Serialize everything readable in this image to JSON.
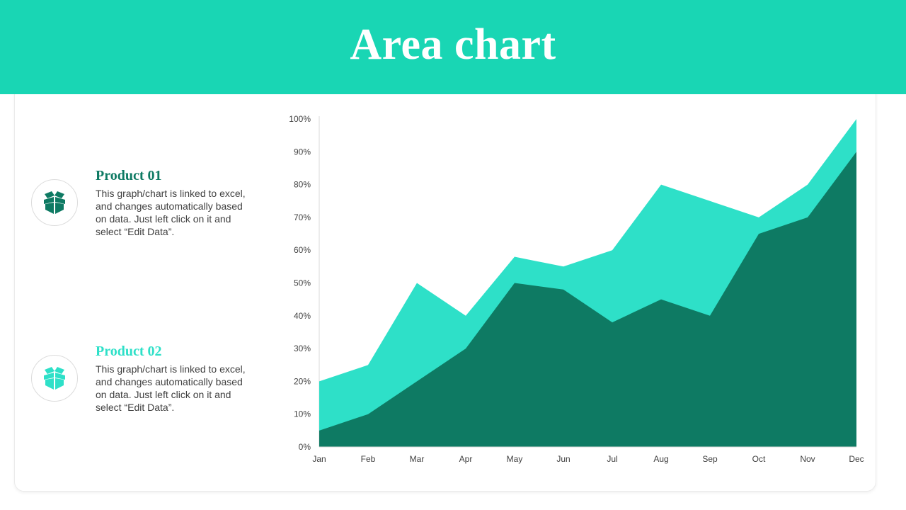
{
  "page": {
    "title": "Area chart"
  },
  "legend": {
    "items": [
      {
        "title": "Product 01",
        "description": "This graph/chart is linked to excel, and changes automatically based on data. Just left click on it and select “Edit Data”.",
        "icon": "box-icon",
        "color": "#0e7a63"
      },
      {
        "title": "Product 02",
        "description": "This graph/chart is linked to excel, and changes automatically based on data. Just left click on it and select “Edit Data”.",
        "icon": "box-icon",
        "color": "#2ee0c8"
      }
    ]
  },
  "colors": {
    "header_bg": "#19d6b4",
    "product01": "#0e7a63",
    "product02": "#2ee0c8"
  },
  "chart_data": {
    "type": "area",
    "title": "",
    "xlabel": "",
    "ylabel": "",
    "categories": [
      "Jan",
      "Feb",
      "Mar",
      "Apr",
      "May",
      "Jun",
      "Jul",
      "Aug",
      "Sep",
      "Oct",
      "Nov",
      "Dec"
    ],
    "series": [
      {
        "name": "Product 02",
        "color": "#2ee0c8",
        "values": [
          20,
          25,
          50,
          40,
          58,
          55,
          60,
          80,
          75,
          70,
          80,
          100
        ]
      },
      {
        "name": "Product 01",
        "color": "#0e7a63",
        "values": [
          5,
          10,
          20,
          30,
          50,
          48,
          38,
          45,
          40,
          65,
          70,
          90
        ]
      }
    ],
    "ylim": [
      0,
      100
    ],
    "yticks": [
      "0%",
      "10%",
      "20%",
      "30%",
      "40%",
      "50%",
      "60%",
      "70%",
      "80%",
      "90%",
      "100%"
    ],
    "grid": false,
    "stacked": false
  }
}
